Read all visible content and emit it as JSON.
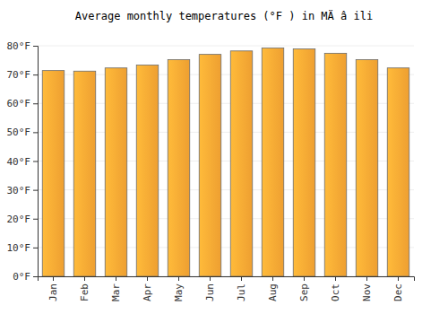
{
  "chart_data": {
    "type": "bar",
    "title": "Average monthly temperatures (°F ) in MÄ â ili",
    "categories": [
      "Jan",
      "Feb",
      "Mar",
      "Apr",
      "May",
      "Jun",
      "Jul",
      "Aug",
      "Sep",
      "Oct",
      "Nov",
      "Dec"
    ],
    "values": [
      71.4,
      71.2,
      72.3,
      73.3,
      75.2,
      77.0,
      78.2,
      79.2,
      78.9,
      77.4,
      75.2,
      72.3
    ],
    "color": "#fba834",
    "ylim": [
      0,
      80
    ],
    "yticks": [
      {
        "value": 0,
        "label": "0°F"
      },
      {
        "value": 10,
        "label": "10°F"
      },
      {
        "value": 20,
        "label": "20°F"
      },
      {
        "value": 30,
        "label": "30°F"
      },
      {
        "value": 40,
        "label": "40°F"
      },
      {
        "value": 50,
        "label": "50°F"
      },
      {
        "value": 60,
        "label": "60°F"
      },
      {
        "value": 70,
        "label": "70°F"
      },
      {
        "value": 80,
        "label": "80°F"
      }
    ],
    "grid": true
  }
}
